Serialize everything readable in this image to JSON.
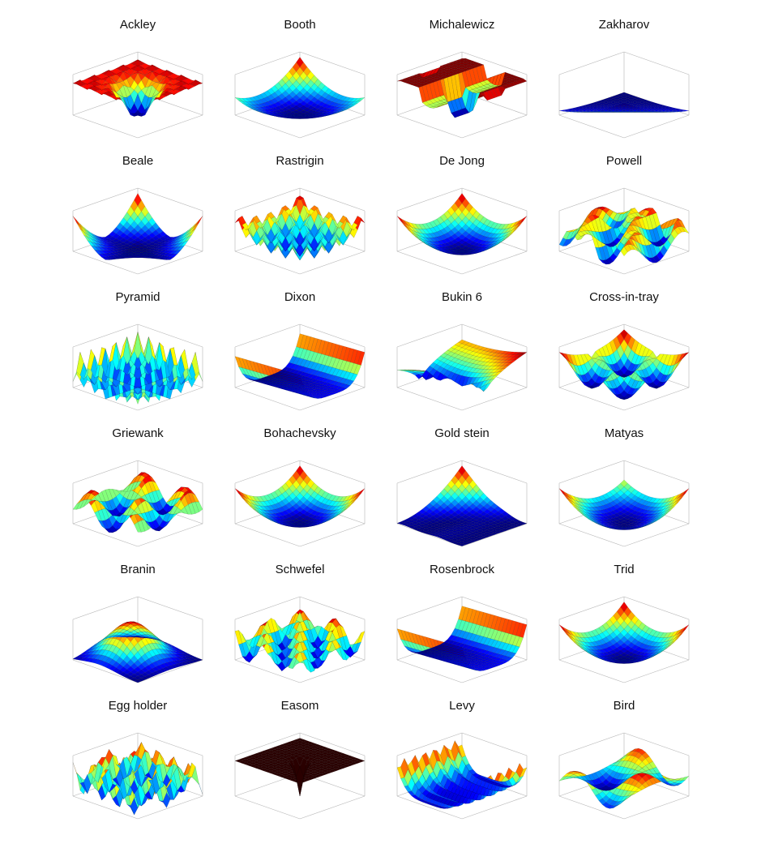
{
  "panels": [
    {
      "title": "Ackley",
      "style": "ackley"
    },
    {
      "title": "Booth",
      "style": "bowlflat"
    },
    {
      "title": "Michalewicz",
      "style": "michal"
    },
    {
      "title": "Zakharov",
      "style": "cone"
    },
    {
      "title": "Beale",
      "style": "beale"
    },
    {
      "title": "Rastrigin",
      "style": "rastrigin"
    },
    {
      "title": "De Jong",
      "style": "bowl"
    },
    {
      "title": "Powell",
      "style": "peaks"
    },
    {
      "title": "Pyramid",
      "style": "pyramid"
    },
    {
      "title": "Dixon",
      "style": "valley"
    },
    {
      "title": "Bukin 6",
      "style": "bukin"
    },
    {
      "title": "Cross-in-tray",
      "style": "cross"
    },
    {
      "title": "Griewank",
      "style": "griewank"
    },
    {
      "title": "Bohachevsky",
      "style": "bowl"
    },
    {
      "title": "Gold stein",
      "style": "goldstein"
    },
    {
      "title": "Matyas",
      "style": "bowlwide"
    },
    {
      "title": "Branin",
      "style": "hill"
    },
    {
      "title": "Schwefel",
      "style": "schwefel"
    },
    {
      "title": "Rosenbrock",
      "style": "valley"
    },
    {
      "title": "Trid",
      "style": "trid"
    },
    {
      "title": "Egg holder",
      "style": "eggholder"
    },
    {
      "title": "Easom",
      "style": "easom"
    },
    {
      "title": "Levy",
      "style": "levy"
    },
    {
      "title": "Bird",
      "style": "bird"
    }
  ]
}
